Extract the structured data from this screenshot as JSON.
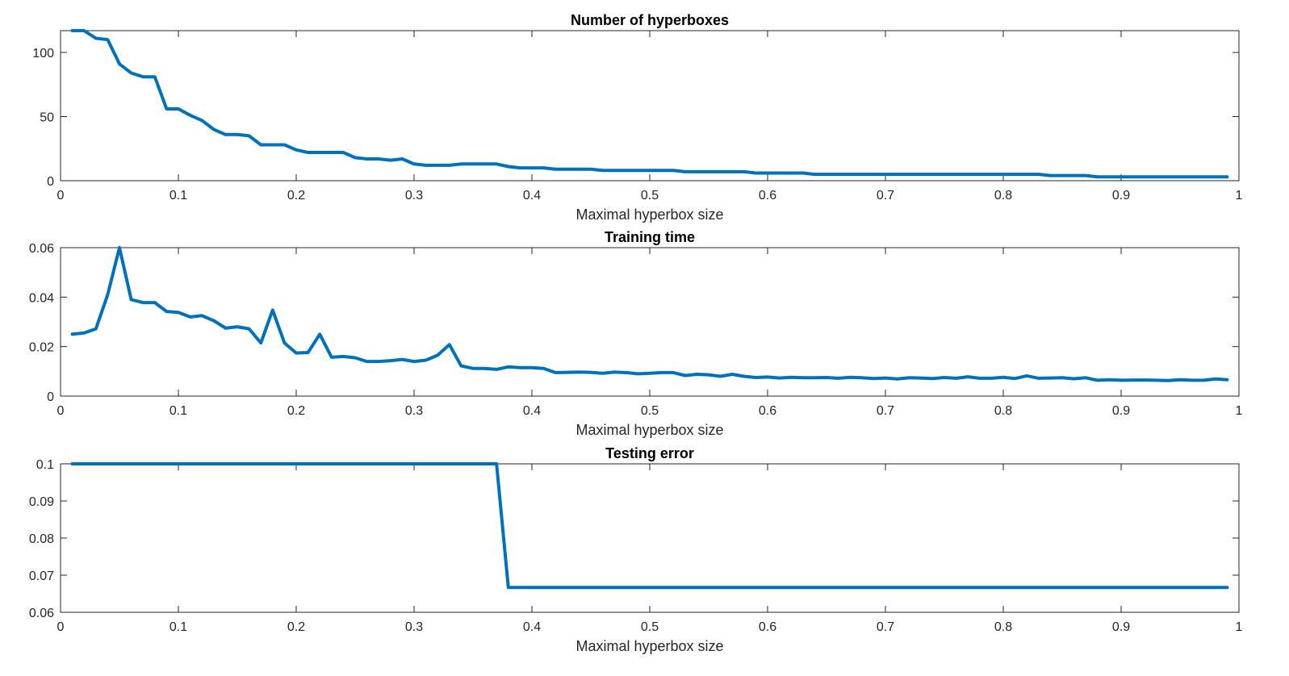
{
  "line_color": "#0072BD",
  "chart_data": [
    {
      "type": "line",
      "title": "Number of hyperboxes",
      "xlabel": "Maximal hyperbox size",
      "ylabel": "",
      "xlim": [
        0,
        1
      ],
      "ylim": [
        0,
        117
      ],
      "grid": false,
      "x_ticks": [
        0,
        0.1,
        0.2,
        0.3,
        0.4,
        0.5,
        0.6,
        0.7,
        0.8,
        0.9,
        1
      ],
      "x_tick_labels": [
        "0",
        "0.1",
        "0.2",
        "0.3",
        "0.4",
        "0.5",
        "0.6",
        "0.7",
        "0.8",
        "0.9",
        "1"
      ],
      "y_ticks": [
        0,
        50,
        100
      ],
      "y_tick_labels": [
        "0",
        "50",
        "100"
      ],
      "x": [
        0.01,
        0.02,
        0.03,
        0.04,
        0.05,
        0.06,
        0.07,
        0.08,
        0.09,
        0.1,
        0.11,
        0.12,
        0.13,
        0.14,
        0.15,
        0.16,
        0.17,
        0.18,
        0.19,
        0.2,
        0.21,
        0.22,
        0.23,
        0.24,
        0.25,
        0.26,
        0.27,
        0.28,
        0.29,
        0.3,
        0.31,
        0.32,
        0.33,
        0.34,
        0.35,
        0.36,
        0.37,
        0.38,
        0.39,
        0.4,
        0.41,
        0.42,
        0.43,
        0.44,
        0.45,
        0.46,
        0.47,
        0.48,
        0.49,
        0.5,
        0.51,
        0.52,
        0.53,
        0.54,
        0.55,
        0.56,
        0.57,
        0.58,
        0.59,
        0.6,
        0.61,
        0.62,
        0.63,
        0.64,
        0.65,
        0.66,
        0.67,
        0.68,
        0.69,
        0.7,
        0.71,
        0.72,
        0.73,
        0.74,
        0.75,
        0.76,
        0.77,
        0.78,
        0.79,
        0.8,
        0.81,
        0.82,
        0.83,
        0.84,
        0.85,
        0.86,
        0.87,
        0.88,
        0.89,
        0.9,
        0.91,
        0.92,
        0.93,
        0.94,
        0.95,
        0.96,
        0.97,
        0.98,
        0.99
      ],
      "y": [
        117,
        117,
        111,
        110,
        91,
        84,
        81,
        81,
        56,
        56,
        51,
        47,
        40,
        36,
        36,
        35,
        28,
        28,
        28,
        24,
        22,
        22,
        22,
        22,
        18,
        17,
        17,
        16,
        17,
        13,
        12,
        12,
        12,
        13,
        13,
        13,
        13,
        11,
        10,
        10,
        10,
        9,
        9,
        9,
        9,
        8,
        8,
        8,
        8,
        8,
        8,
        8,
        7,
        7,
        7,
        7,
        7,
        7,
        6,
        6,
        6,
        6,
        6,
        5,
        5,
        5,
        5,
        5,
        5,
        5,
        5,
        5,
        5,
        5,
        5,
        5,
        5,
        5,
        5,
        5,
        5,
        5,
        5,
        4,
        4,
        4,
        4,
        3,
        3,
        3,
        3,
        3,
        3,
        3,
        3,
        3,
        3,
        3,
        3
      ]
    },
    {
      "type": "line",
      "title": "Training time",
      "xlabel": "Maximal hyperbox size",
      "ylabel": "",
      "xlim": [
        0,
        1
      ],
      "ylim": [
        0,
        0.06
      ],
      "grid": false,
      "x_ticks": [
        0,
        0.1,
        0.2,
        0.3,
        0.4,
        0.5,
        0.6,
        0.7,
        0.8,
        0.9,
        1
      ],
      "x_tick_labels": [
        "0",
        "0.1",
        "0.2",
        "0.3",
        "0.4",
        "0.5",
        "0.6",
        "0.7",
        "0.8",
        "0.9",
        "1"
      ],
      "y_ticks": [
        0,
        0.02,
        0.04,
        0.06
      ],
      "y_tick_labels": [
        "0",
        "0.02",
        "0.04",
        "0.06"
      ],
      "x": [
        0.01,
        0.02,
        0.03,
        0.04,
        0.05,
        0.06,
        0.07,
        0.08,
        0.09,
        0.1,
        0.11,
        0.12,
        0.13,
        0.14,
        0.15,
        0.16,
        0.17,
        0.18,
        0.19,
        0.2,
        0.21,
        0.22,
        0.23,
        0.24,
        0.25,
        0.26,
        0.27,
        0.28,
        0.29,
        0.3,
        0.31,
        0.32,
        0.33,
        0.34,
        0.35,
        0.36,
        0.37,
        0.38,
        0.39,
        0.4,
        0.41,
        0.42,
        0.43,
        0.44,
        0.45,
        0.46,
        0.47,
        0.48,
        0.49,
        0.5,
        0.51,
        0.52,
        0.53,
        0.54,
        0.55,
        0.56,
        0.57,
        0.58,
        0.59,
        0.6,
        0.61,
        0.62,
        0.63,
        0.64,
        0.65,
        0.66,
        0.67,
        0.68,
        0.69,
        0.7,
        0.71,
        0.72,
        0.73,
        0.74,
        0.75,
        0.76,
        0.77,
        0.78,
        0.79,
        0.8,
        0.81,
        0.82,
        0.83,
        0.84,
        0.85,
        0.86,
        0.87,
        0.88,
        0.89,
        0.9,
        0.91,
        0.92,
        0.93,
        0.94,
        0.95,
        0.96,
        0.97,
        0.98,
        0.99
      ],
      "y": [
        0.025,
        0.0255,
        0.0272,
        0.041,
        0.06,
        0.039,
        0.0378,
        0.0378,
        0.0342,
        0.0338,
        0.032,
        0.0325,
        0.0305,
        0.0275,
        0.028,
        0.0272,
        0.0215,
        0.0348,
        0.0215,
        0.0174,
        0.0176,
        0.025,
        0.0157,
        0.016,
        0.0155,
        0.014,
        0.014,
        0.0143,
        0.0148,
        0.014,
        0.0145,
        0.0165,
        0.0208,
        0.0122,
        0.0112,
        0.0112,
        0.0108,
        0.0118,
        0.0115,
        0.0115,
        0.0112,
        0.0095,
        0.0096,
        0.0097,
        0.0096,
        0.0092,
        0.0097,
        0.0095,
        0.009,
        0.0092,
        0.0095,
        0.0095,
        0.0083,
        0.0088,
        0.0086,
        0.008,
        0.0088,
        0.008,
        0.0075,
        0.0077,
        0.0073,
        0.0076,
        0.0074,
        0.0074,
        0.0075,
        0.0072,
        0.0076,
        0.0074,
        0.0071,
        0.0073,
        0.0069,
        0.0074,
        0.0073,
        0.0071,
        0.0075,
        0.0072,
        0.0078,
        0.0072,
        0.0072,
        0.0076,
        0.0071,
        0.0082,
        0.0072,
        0.0073,
        0.0074,
        0.007,
        0.0074,
        0.0064,
        0.0066,
        0.0064,
        0.0065,
        0.0065,
        0.0064,
        0.0063,
        0.0066,
        0.0064,
        0.0064,
        0.0069,
        0.0066
      ]
    },
    {
      "type": "line",
      "title": "Testing error",
      "xlabel": "Maximal hyperbox size",
      "ylabel": "",
      "xlim": [
        0,
        1
      ],
      "ylim": [
        0.06,
        0.1
      ],
      "grid": false,
      "x_ticks": [
        0,
        0.1,
        0.2,
        0.3,
        0.4,
        0.5,
        0.6,
        0.7,
        0.8,
        0.9,
        1
      ],
      "x_tick_labels": [
        "0",
        "0.1",
        "0.2",
        "0.3",
        "0.4",
        "0.5",
        "0.6",
        "0.7",
        "0.8",
        "0.9",
        "1"
      ],
      "y_ticks": [
        0.06,
        0.07,
        0.08,
        0.09,
        0.1
      ],
      "y_tick_labels": [
        "0.06",
        "0.07",
        "0.08",
        "0.09",
        "0.1"
      ],
      "x": [
        0.01,
        0.37,
        0.38,
        0.99
      ],
      "y": [
        0.1,
        0.1,
        0.0667,
        0.0667
      ]
    }
  ]
}
